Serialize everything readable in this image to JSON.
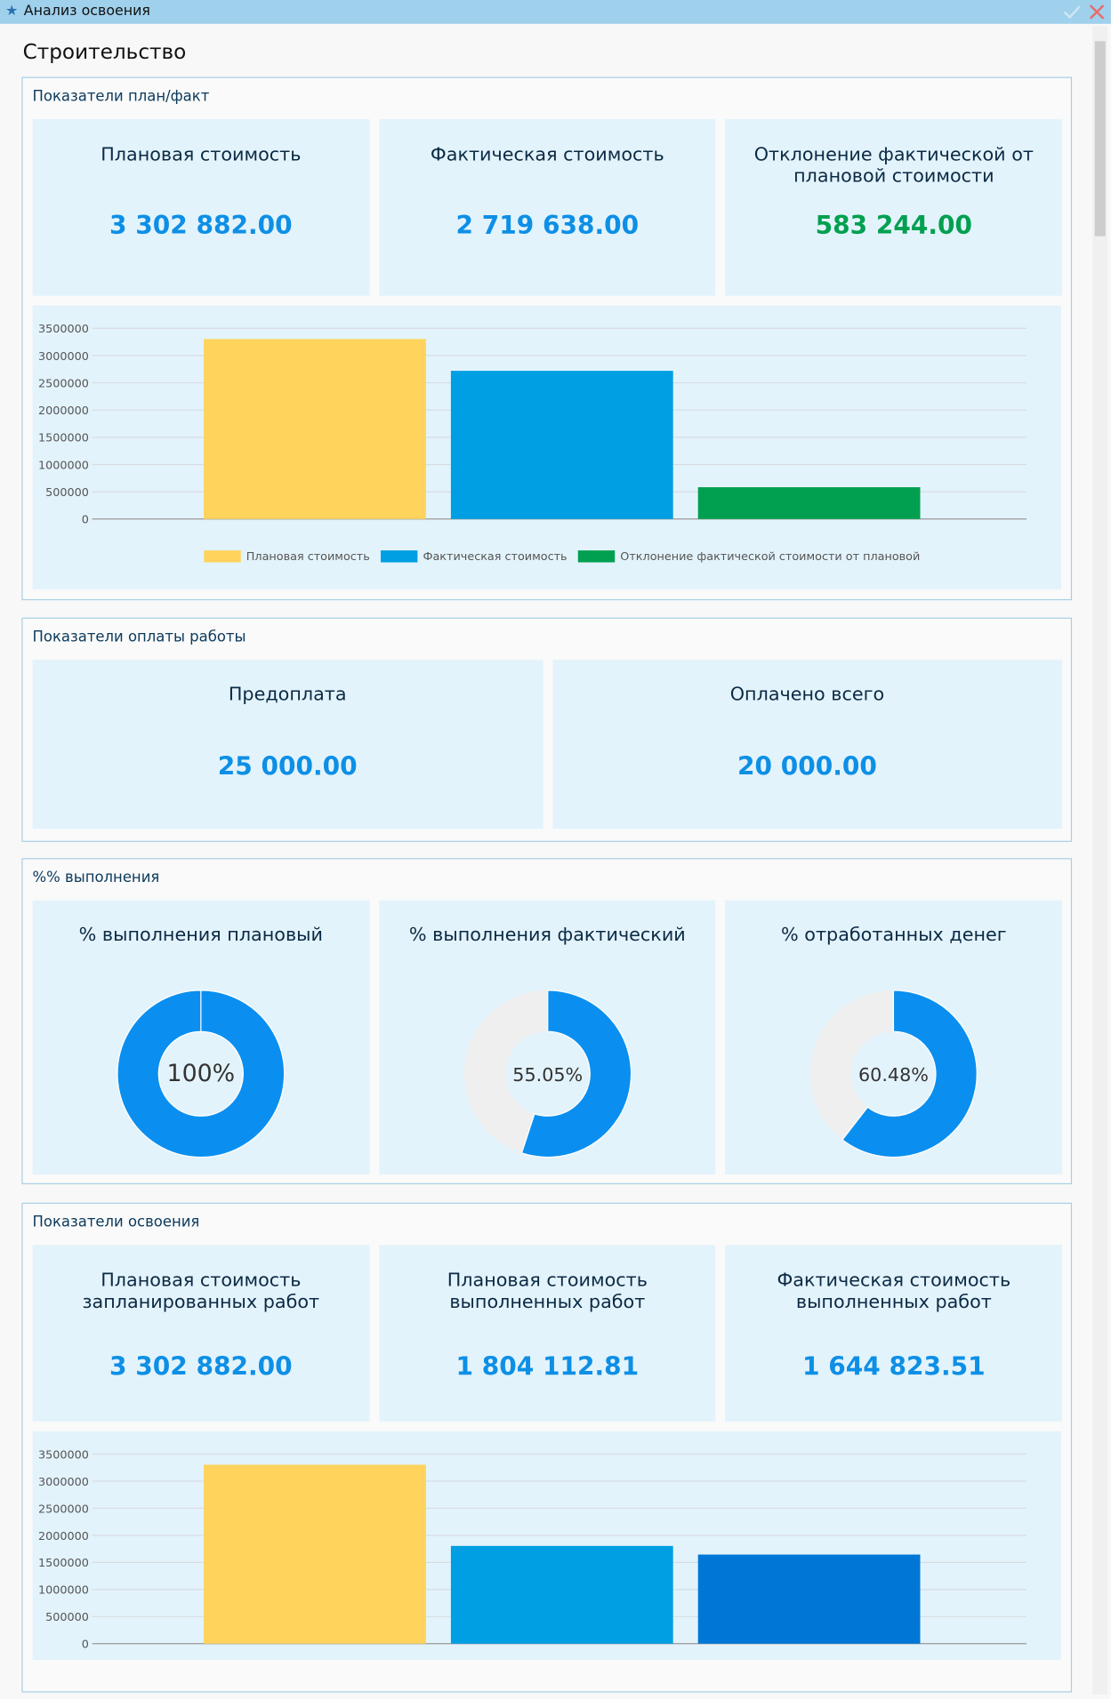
{
  "window_title": "Анализ освоения",
  "page_title": "Строительство",
  "sections": [
    {
      "title": "Показатели план/факт",
      "cards": [
        {
          "title": "Плановая стоимость",
          "value": "3 302 882.00"
        },
        {
          "title": "Фактическая стоимость",
          "value": "2 719 638.00"
        },
        {
          "title": "Отклонение фактической от плановой стоимости",
          "value": "583 244.00"
        }
      ],
      "chart": {
        "type": "bar",
        "categories": [
          "Плановая стоимость",
          "Фактическая стоимость",
          "Отклонение фактической стоимости от плановой"
        ],
        "values": [
          3302882,
          2719638,
          583244
        ],
        "colors": [
          "#ffd35c",
          "#009fe3",
          "#00a050"
        ],
        "ylim": [
          0,
          3500000
        ],
        "yticks": [
          0,
          500000,
          1000000,
          1500000,
          2000000,
          2500000,
          3000000,
          3500000
        ],
        "grid": true,
        "legend": "bottom"
      }
    },
    {
      "title": "Показатели оплаты работы",
      "cards": [
        {
          "title": "Предоплата",
          "value": "25 000.00"
        },
        {
          "title": "Оплачено всего",
          "value": "20 000.00"
        }
      ]
    },
    {
      "title": "%% выполнения",
      "cards": [
        {
          "title": "% выполнения плановый",
          "chart": {
            "type": "pie",
            "values": [
              100
            ],
            "value_labels": [
              "100%"
            ],
            "color": "#0a8ff0"
          }
        },
        {
          "title": "% выполнения фактический",
          "chart": {
            "type": "pie",
            "values": [
              55.05
            ],
            "value_labels": [
              "55.05%"
            ],
            "color": "#0a8ff0"
          }
        },
        {
          "title": "% отработанных денег",
          "chart": {
            "type": "pie",
            "values": [
              60.48
            ],
            "value_labels": [
              "60.48%"
            ],
            "color": "#0a8ff0"
          }
        }
      ]
    },
    {
      "title": "Показатели освоения",
      "cards": [
        {
          "title": "Плановая стоимость запланированных работ",
          "value": "3 302 882.00"
        },
        {
          "title": "Плановая стоимость выполненных работ",
          "value": "1 804 112.81"
        },
        {
          "title": "Фактическая стоимость выполненных работ",
          "value": "1 644 823.51"
        }
      ],
      "chart": {
        "type": "bar",
        "categories": [
          null,
          null,
          null
        ],
        "values": [
          3302882,
          1804112.81,
          1644823.51
        ],
        "colors": [
          "#ffd35c",
          "#009fe3",
          "#0077d6"
        ],
        "ylim": [
          0,
          3500000
        ],
        "yticks": [
          0,
          500000,
          1000000,
          1500000,
          2000000,
          2500000,
          3000000,
          3500000
        ],
        "grid": true
      }
    }
  ]
}
